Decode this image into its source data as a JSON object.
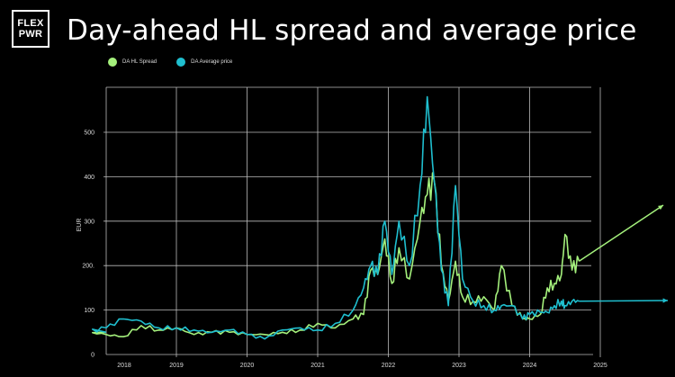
{
  "logo": {
    "line1": "FLEX",
    "line2": "PWR"
  },
  "title": "Day-ahead HL spread and average price",
  "legend": [
    {
      "label": "DA HL Spread",
      "color": "#a4f07c"
    },
    {
      "label": "DA Average price",
      "color": "#1fbfcf"
    }
  ],
  "chart_data": {
    "type": "line",
    "title": "Day-ahead HL spread and average price",
    "xlabel": "",
    "ylabel": "EUR",
    "ylim": [
      0,
      600
    ],
    "y_ticks": [
      "0",
      "100",
      "200.",
      "300",
      "400",
      "500"
    ],
    "x_ticks": [
      "2018",
      "2019",
      "2020",
      "2021",
      "2022",
      "2023",
      "2024",
      "2025"
    ],
    "grid": true,
    "legend_position": "top",
    "x": [
      2017.75,
      2018.0,
      2018.25,
      2018.5,
      2018.75,
      2019.0,
      2019.25,
      2019.5,
      2019.75,
      2020.0,
      2020.25,
      2020.5,
      2020.75,
      2021.0,
      2021.25,
      2021.5,
      2021.65,
      2021.75,
      2021.85,
      2021.95,
      2022.05,
      2022.15,
      2022.3,
      2022.45,
      2022.55,
      2022.65,
      2022.75,
      2022.85,
      2022.95,
      2023.05,
      2023.2,
      2023.35,
      2023.5,
      2023.6,
      2023.75,
      2023.9,
      2024.0,
      2024.15,
      2024.25,
      2024.35,
      2024.45,
      2024.5,
      2024.6,
      2024.7
    ],
    "series": [
      {
        "name": "DA HL Spread",
        "color": "#a4f07c",
        "values": [
          50,
          45,
          40,
          65,
          55,
          60,
          45,
          50,
          50,
          45,
          45,
          50,
          55,
          70,
          60,
          80,
          90,
          190,
          180,
          260,
          160,
          240,
          170,
          300,
          360,
          390,
          200,
          120,
          210,
          130,
          120,
          130,
          100,
          200,
          110,
          80,
          80,
          90,
          150,
          160,
          180,
          270,
          190,
          210
        ]
      },
      {
        "name": "DA Average price",
        "color": "#1fbfcf",
        "values": [
          50,
          60,
          80,
          75,
          60,
          60,
          55,
          50,
          55,
          45,
          35,
          55,
          60,
          55,
          70,
          100,
          150,
          200,
          180,
          300,
          180,
          300,
          200,
          380,
          580,
          390,
          190,
          110,
          380,
          170,
          120,
          110,
          100,
          110,
          110,
          80,
          90,
          95,
          95,
          110,
          120,
          110,
          120,
          120
        ]
      }
    ],
    "annotations": [
      {
        "type": "arrow",
        "series": "DA HL Spread",
        "description": "upward trend projection"
      },
      {
        "type": "arrow",
        "series": "DA Average price",
        "description": "flat projection"
      }
    ]
  }
}
